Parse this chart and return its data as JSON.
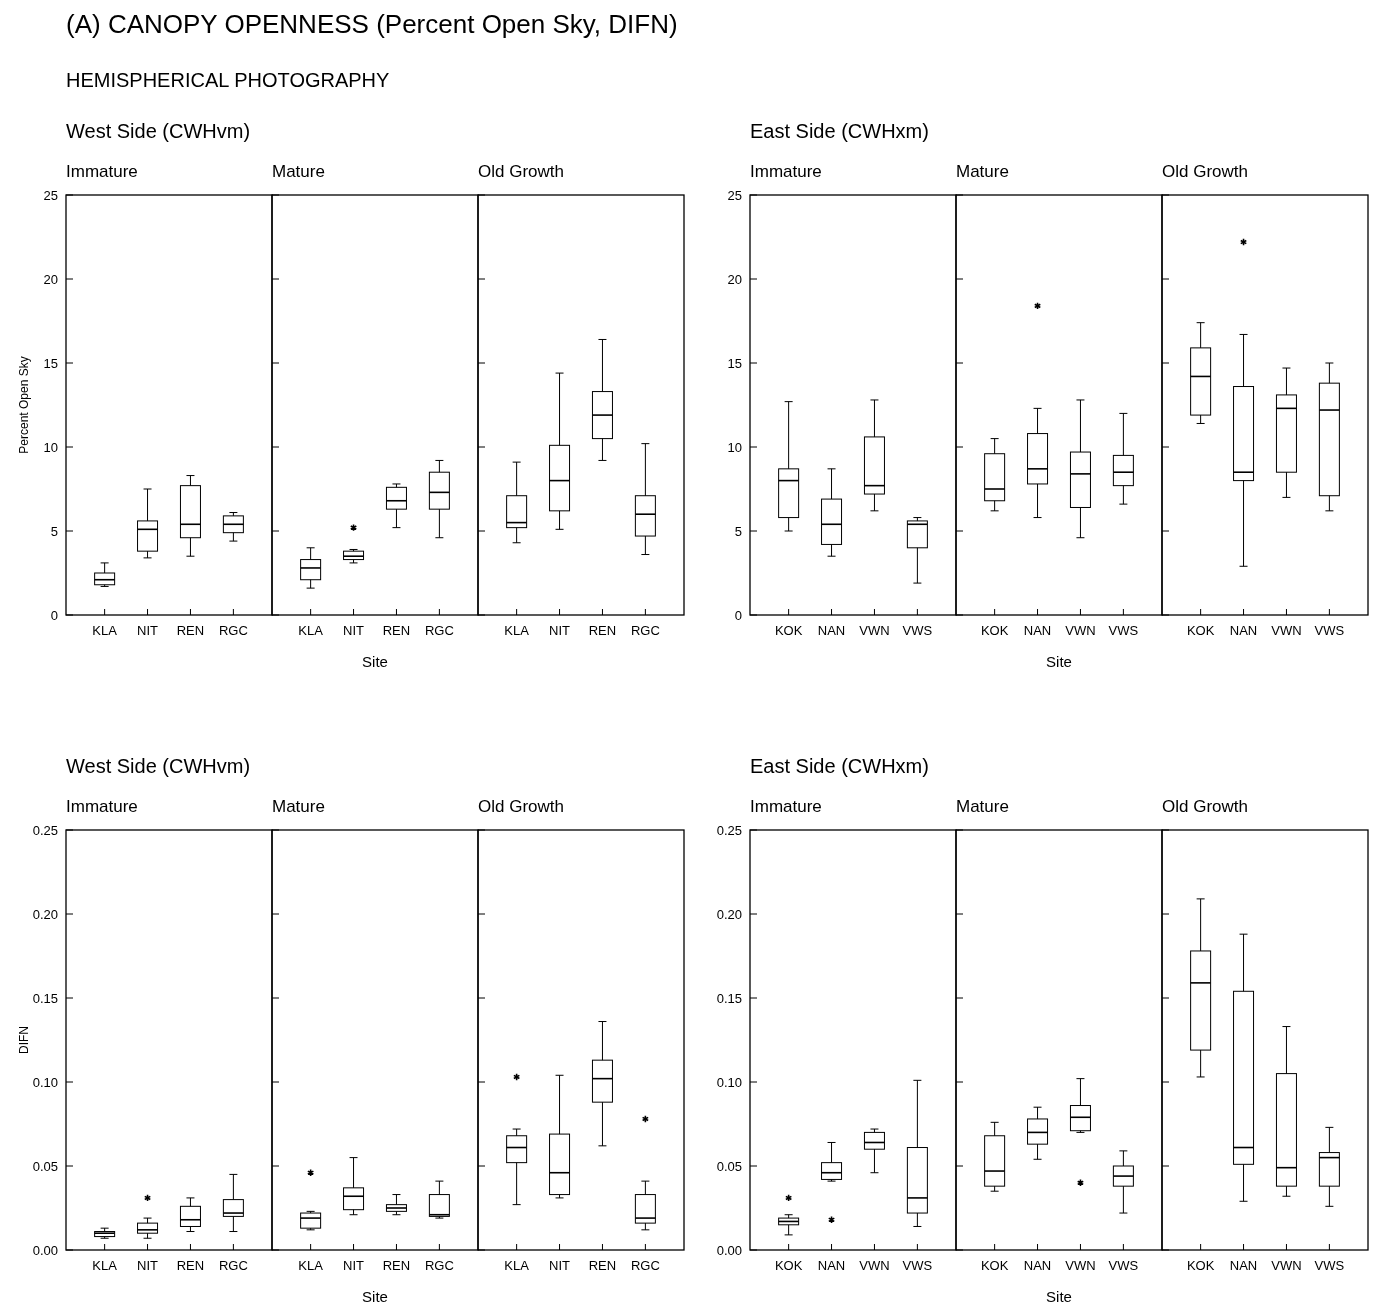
{
  "chart_data": [
    {
      "type": "box",
      "annotations": [
        "(A) CANOPY OPENNESS (Percent Open Sky, DIFN)",
        "HEMISPHERICAL PHOTOGRAPHY"
      ],
      "subtitle": "West Side (CWHvm)",
      "title": "Immature",
      "ylabel": "Percent Open Sky",
      "categories": [
        "KLA",
        "NIT",
        "REN",
        "RGC"
      ],
      "ylim": [
        0,
        25
      ],
      "yticks": [
        0,
        5,
        10,
        15,
        20,
        25
      ],
      "boxes": [
        {
          "low": 1.7,
          "q1": 1.8,
          "median": 2.1,
          "q3": 2.5,
          "high": 3.1
        },
        {
          "low": 3.4,
          "q1": 3.8,
          "median": 5.1,
          "q3": 5.6,
          "high": 7.5
        },
        {
          "low": 3.5,
          "q1": 4.6,
          "median": 5.4,
          "q3": 7.7,
          "high": 8.3
        },
        {
          "low": 4.4,
          "q1": 4.9,
          "median": 5.4,
          "q3": 5.9,
          "high": 6.1
        }
      ]
    },
    {
      "type": "box",
      "title": "Mature",
      "xlabel": "Site",
      "categories": [
        "KLA",
        "NIT",
        "REN",
        "RGC"
      ],
      "ylim": [
        0,
        25
      ],
      "yticks": [
        0,
        5,
        10,
        15,
        20,
        25
      ],
      "tick_labels": "x",
      "boxes": [
        {
          "low": 1.6,
          "q1": 2.1,
          "median": 2.8,
          "q3": 3.3,
          "high": 4.0
        },
        {
          "low": 3.1,
          "q1": 3.3,
          "median": 3.5,
          "q3": 3.8,
          "high": 3.9,
          "outliers": [
            5.2
          ]
        },
        {
          "low": 5.2,
          "q1": 6.3,
          "median": 6.8,
          "q3": 7.6,
          "high": 7.8
        },
        {
          "low": 4.6,
          "q1": 6.3,
          "median": 7.3,
          "q3": 8.5,
          "high": 9.2
        }
      ]
    },
    {
      "type": "box",
      "title": "Old Growth",
      "categories": [
        "KLA",
        "NIT",
        "REN",
        "RGC"
      ],
      "ylim": [
        0,
        25
      ],
      "yticks": [
        0,
        5,
        10,
        15,
        20,
        25
      ],
      "tick_labels": "x",
      "boxes": [
        {
          "low": 4.3,
          "q1": 5.2,
          "median": 5.5,
          "q3": 7.1,
          "high": 9.1
        },
        {
          "low": 5.1,
          "q1": 6.2,
          "median": 8.0,
          "q3": 10.1,
          "high": 14.4
        },
        {
          "low": 9.2,
          "q1": 10.5,
          "median": 11.9,
          "q3": 13.3,
          "high": 16.4
        },
        {
          "low": 3.6,
          "q1": 4.7,
          "median": 6.0,
          "q3": 7.1,
          "high": 10.2
        }
      ]
    },
    {
      "type": "box",
      "subtitle": "East Side (CWHxm)",
      "title": "Immature",
      "categories": [
        "KOK",
        "NAN",
        "VWN",
        "VWS"
      ],
      "ylim": [
        0,
        25
      ],
      "yticks": [
        0,
        5,
        10,
        15,
        20,
        25
      ],
      "boxes": [
        {
          "low": 5.0,
          "q1": 5.8,
          "median": 8.0,
          "q3": 8.7,
          "high": 12.7
        },
        {
          "low": 3.5,
          "q1": 4.2,
          "median": 5.4,
          "q3": 6.9,
          "high": 8.7
        },
        {
          "low": 6.2,
          "q1": 7.2,
          "median": 7.7,
          "q3": 10.6,
          "high": 12.8
        },
        {
          "low": 1.9,
          "q1": 4.0,
          "median": 5.4,
          "q3": 5.6,
          "high": 5.8
        }
      ]
    },
    {
      "type": "box",
      "title": "Mature",
      "xlabel": "Site",
      "categories": [
        "KOK",
        "NAN",
        "VWN",
        "VWS"
      ],
      "ylim": [
        0,
        25
      ],
      "yticks": [
        0,
        5,
        10,
        15,
        20,
        25
      ],
      "tick_labels": "x",
      "boxes": [
        {
          "low": 6.2,
          "q1": 6.8,
          "median": 7.5,
          "q3": 9.6,
          "high": 10.5
        },
        {
          "low": 5.8,
          "q1": 7.8,
          "median": 8.7,
          "q3": 10.8,
          "high": 12.3,
          "outliers": [
            18.4
          ]
        },
        {
          "low": 4.6,
          "q1": 6.4,
          "median": 8.4,
          "q3": 9.7,
          "high": 12.8
        },
        {
          "low": 6.6,
          "q1": 7.7,
          "median": 8.5,
          "q3": 9.5,
          "high": 12.0
        }
      ]
    },
    {
      "type": "box",
      "title": "Old Growth",
      "categories": [
        "KOK",
        "NAN",
        "VWN",
        "VWS"
      ],
      "ylim": [
        0,
        25
      ],
      "yticks": [
        0,
        5,
        10,
        15,
        20,
        25
      ],
      "tick_labels": "x",
      "boxes": [
        {
          "low": 11.4,
          "q1": 11.9,
          "median": 14.2,
          "q3": 15.9,
          "high": 17.4
        },
        {
          "low": 2.9,
          "q1": 8.0,
          "median": 8.5,
          "q3": 13.6,
          "high": 16.7,
          "outliers": [
            22.2
          ]
        },
        {
          "low": 7.0,
          "q1": 8.5,
          "median": 12.3,
          "q3": 13.1,
          "high": 14.7
        },
        {
          "low": 6.2,
          "q1": 7.1,
          "median": 12.2,
          "q3": 13.8,
          "high": 15.0
        }
      ]
    },
    {
      "type": "box",
      "subtitle": "West Side (CWHvm)",
      "title": "Immature",
      "ylabel": "DIFN",
      "categories": [
        "KLA",
        "NIT",
        "REN",
        "RGC"
      ],
      "ylim": [
        0,
        0.25
      ],
      "yticks": [
        {
          "value": 0,
          "label": "0.00"
        },
        0.05,
        {
          "value": 0.1,
          "label": "0.10"
        },
        0.15,
        {
          "value": 0.2,
          "label": "0.20"
        },
        0.25
      ],
      "boxes": [
        {
          "low": 0.007,
          "q1": 0.008,
          "median": 0.01,
          "q3": 0.011,
          "high": 0.013
        },
        {
          "low": 0.007,
          "q1": 0.01,
          "median": 0.012,
          "q3": 0.016,
          "high": 0.019,
          "outliers": [
            0.031
          ]
        },
        {
          "low": 0.011,
          "q1": 0.014,
          "median": 0.018,
          "q3": 0.026,
          "high": 0.031
        },
        {
          "low": 0.011,
          "q1": 0.02,
          "median": 0.022,
          "q3": 0.03,
          "high": 0.045
        }
      ]
    },
    {
      "type": "box",
      "title": "Mature",
      "xlabel": "Site",
      "categories": [
        "KLA",
        "NIT",
        "REN",
        "RGC"
      ],
      "ylim": [
        0,
        0.25
      ],
      "yticks": [
        0,
        0.05,
        0.1,
        0.15,
        0.2,
        0.25
      ],
      "tick_labels": "x",
      "boxes": [
        {
          "low": 0.012,
          "q1": 0.013,
          "median": 0.019,
          "q3": 0.022,
          "high": 0.023,
          "outliers": [
            0.046
          ]
        },
        {
          "low": 0.021,
          "q1": 0.024,
          "median": 0.032,
          "q3": 0.037,
          "high": 0.055
        },
        {
          "low": 0.021,
          "q1": 0.023,
          "median": 0.025,
          "q3": 0.027,
          "high": 0.033
        },
        {
          "low": 0.019,
          "q1": 0.02,
          "median": 0.021,
          "q3": 0.033,
          "high": 0.041
        }
      ]
    },
    {
      "type": "box",
      "title": "Old Growth",
      "categories": [
        "KLA",
        "NIT",
        "REN",
        "RGC"
      ],
      "ylim": [
        0,
        0.25
      ],
      "yticks": [
        0,
        0.05,
        0.1,
        0.15,
        0.2,
        0.25
      ],
      "tick_labels": "x",
      "boxes": [
        {
          "low": 0.027,
          "q1": 0.052,
          "median": 0.061,
          "q3": 0.068,
          "high": 0.072,
          "outliers": [
            0.103
          ]
        },
        {
          "low": 0.031,
          "q1": 0.033,
          "median": 0.046,
          "q3": 0.069,
          "high": 0.104
        },
        {
          "low": 0.062,
          "q1": 0.088,
          "median": 0.102,
          "q3": 0.113,
          "high": 0.136
        },
        {
          "low": 0.012,
          "q1": 0.016,
          "median": 0.019,
          "q3": 0.033,
          "high": 0.041,
          "outliers": [
            0.078
          ]
        }
      ]
    },
    {
      "type": "box",
      "subtitle": "East Side (CWHxm)",
      "title": "Immature",
      "categories": [
        "KOK",
        "NAN",
        "VWN",
        "VWS"
      ],
      "ylim": [
        0,
        0.25
      ],
      "yticks": [
        {
          "value": 0,
          "label": "0.00"
        },
        0.05,
        {
          "value": 0.1,
          "label": "0.10"
        },
        0.15,
        {
          "value": 0.2,
          "label": "0.20"
        },
        0.25
      ],
      "boxes": [
        {
          "low": 0.009,
          "q1": 0.015,
          "median": 0.017,
          "q3": 0.019,
          "high": 0.021,
          "outliers": [
            0.031
          ]
        },
        {
          "low": 0.041,
          "q1": 0.042,
          "median": 0.046,
          "q3": 0.052,
          "high": 0.064,
          "outliers": [
            0.018
          ]
        },
        {
          "low": 0.046,
          "q1": 0.06,
          "median": 0.064,
          "q3": 0.07,
          "high": 0.072
        },
        {
          "low": 0.014,
          "q1": 0.022,
          "median": 0.031,
          "q3": 0.061,
          "high": 0.101
        }
      ]
    },
    {
      "type": "box",
      "title": "Mature",
      "xlabel": "Site",
      "categories": [
        "KOK",
        "NAN",
        "VWN",
        "VWS"
      ],
      "ylim": [
        0,
        0.25
      ],
      "yticks": [
        0,
        0.05,
        0.1,
        0.15,
        0.2,
        0.25
      ],
      "tick_labels": "x",
      "boxes": [
        {
          "low": 0.035,
          "q1": 0.038,
          "median": 0.047,
          "q3": 0.068,
          "high": 0.076
        },
        {
          "low": 0.054,
          "q1": 0.063,
          "median": 0.07,
          "q3": 0.078,
          "high": 0.085
        },
        {
          "low": 0.07,
          "q1": 0.071,
          "median": 0.079,
          "q3": 0.086,
          "high": 0.102,
          "outliers": [
            0.04
          ]
        },
        {
          "low": 0.022,
          "q1": 0.038,
          "median": 0.044,
          "q3": 0.05,
          "high": 0.059
        }
      ]
    },
    {
      "type": "box",
      "title": "Old Growth",
      "categories": [
        "KOK",
        "NAN",
        "VWN",
        "VWS"
      ],
      "ylim": [
        0,
        0.25
      ],
      "yticks": [
        0,
        0.05,
        0.1,
        0.15,
        0.2,
        0.25
      ],
      "tick_labels": "x",
      "boxes": [
        {
          "low": 0.103,
          "q1": 0.119,
          "median": 0.159,
          "q3": 0.178,
          "high": 0.209
        },
        {
          "low": 0.029,
          "q1": 0.051,
          "median": 0.061,
          "q3": 0.154,
          "high": 0.188
        },
        {
          "low": 0.032,
          "q1": 0.038,
          "median": 0.049,
          "q3": 0.105,
          "high": 0.133
        },
        {
          "low": 0.026,
          "q1": 0.038,
          "median": 0.055,
          "q3": 0.058,
          "high": 0.073
        }
      ]
    }
  ]
}
